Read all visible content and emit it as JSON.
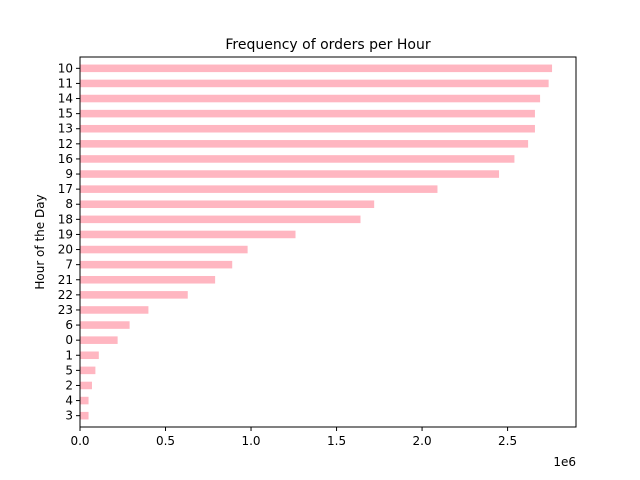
{
  "chart_data": {
    "type": "bar",
    "orientation": "horizontal",
    "title": "Frequency of orders per Hour",
    "xlabel": "",
    "ylabel": "Hour of the Day",
    "x_offset_label": "1e6",
    "x_scale": 1000000,
    "xlim": [
      0,
      2.9
    ],
    "xticks": [
      0,
      0.5,
      1.0,
      1.5,
      2.0,
      2.5
    ],
    "xtick_labels": [
      "0.0",
      "0.5",
      "1.0",
      "1.5",
      "2.0",
      "2.5"
    ],
    "grid": false,
    "legend": "none",
    "bar_color": "#ffb6c1",
    "categories": [
      "10",
      "11",
      "14",
      "15",
      "13",
      "12",
      "16",
      "9",
      "17",
      "8",
      "18",
      "19",
      "20",
      "7",
      "21",
      "22",
      "23",
      "6",
      "0",
      "1",
      "5",
      "2",
      "4",
      "3"
    ],
    "values": [
      2.76,
      2.74,
      2.69,
      2.66,
      2.66,
      2.62,
      2.54,
      2.45,
      2.09,
      1.72,
      1.64,
      1.26,
      0.98,
      0.89,
      0.79,
      0.63,
      0.4,
      0.29,
      0.22,
      0.11,
      0.09,
      0.07,
      0.05,
      0.05
    ]
  }
}
